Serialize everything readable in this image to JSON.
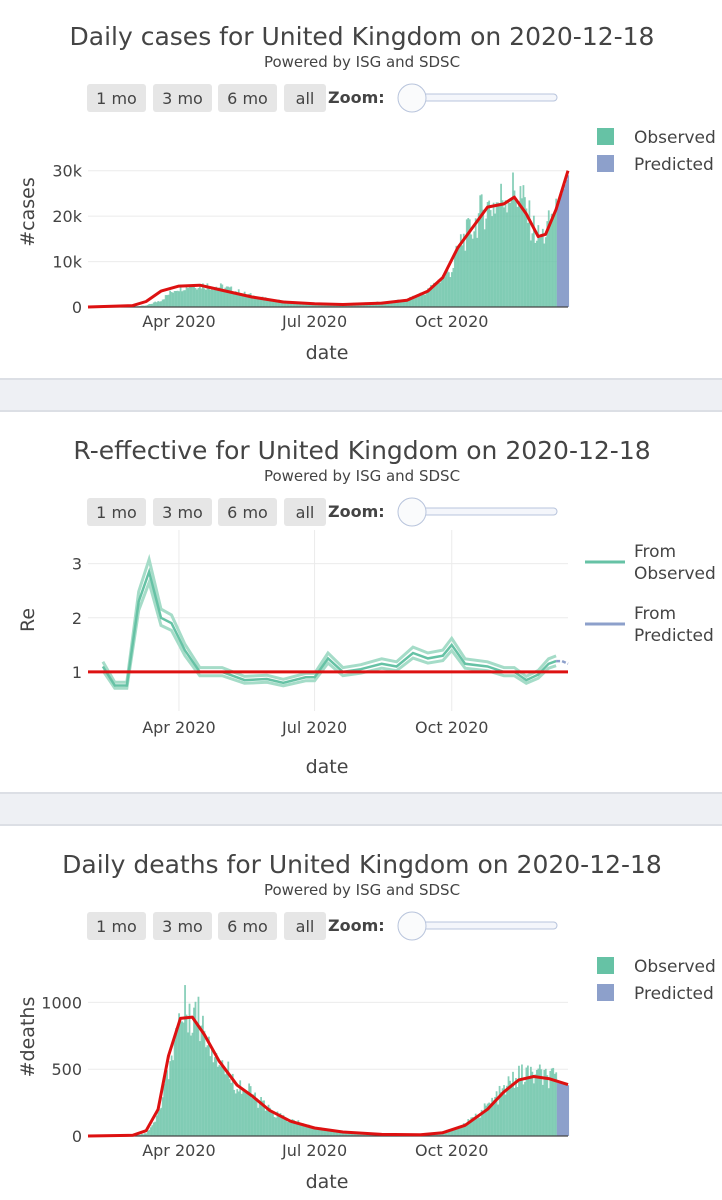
{
  "charts": [
    {
      "title": "Daily cases for United Kingdom on 2020-12-18",
      "subtitle": "Powered by ISG and SDSC",
      "buttons": [
        "1 mo",
        "3 mo",
        "6 mo",
        "all"
      ],
      "zoom_label": "Zoom:",
      "xlabel": "date",
      "ylabel": "#cases",
      "x_ticks": [
        "Apr 2020",
        "Jul 2020",
        "Oct 2020"
      ],
      "y_ticks": [
        "0",
        "10k",
        "20k",
        "30k"
      ],
      "legend": [
        "Observed",
        "Predicted"
      ]
    },
    {
      "title": "R-effective for United Kingdom on 2020-12-18",
      "subtitle": "Powered by ISG and SDSC",
      "buttons": [
        "1 mo",
        "3 mo",
        "6 mo",
        "all"
      ],
      "zoom_label": "Zoom:",
      "xlabel": "date",
      "ylabel": "Re",
      "x_ticks": [
        "Apr 2020",
        "Jul 2020",
        "Oct 2020"
      ],
      "y_ticks": [
        "1",
        "2",
        "3"
      ],
      "legend": [
        [
          "From",
          "Observed"
        ],
        [
          "From",
          "Predicted"
        ]
      ]
    },
    {
      "title": "Daily deaths for United Kingdom on 2020-12-18",
      "subtitle": "Powered by ISG and SDSC",
      "buttons": [
        "1 mo",
        "3 mo",
        "6 mo",
        "all"
      ],
      "zoom_label": "Zoom:",
      "xlabel": "date",
      "ylabel": "#deaths",
      "x_ticks": [
        "Apr 2020",
        "Jul 2020",
        "Oct 2020"
      ],
      "y_ticks": [
        "0",
        "500",
        "1000"
      ],
      "legend": [
        "Observed",
        "Predicted"
      ]
    }
  ],
  "colors": {
    "observed": "#66c2a5",
    "predicted": "#8da0cb",
    "smooth_line": "#dd1111",
    "reference_line": "#dd1111",
    "r_band": "#a5dcc8"
  },
  "chart_data": [
    {
      "type": "bar",
      "x_range": [
        "2020-01-31",
        "2020-12-18"
      ],
      "ylim": [
        0,
        35000
      ],
      "observed_end": "2020-12-10",
      "observed": [
        [
          "2020-01-31",
          0
        ],
        [
          "2020-02-15",
          50
        ],
        [
          "2020-03-01",
          100
        ],
        [
          "2020-03-10",
          300
        ],
        [
          "2020-03-20",
          1500
        ],
        [
          "2020-03-30",
          4000
        ],
        [
          "2020-04-10",
          4800
        ],
        [
          "2020-04-20",
          4600
        ],
        [
          "2020-05-01",
          4200
        ],
        [
          "2020-05-15",
          2800
        ],
        [
          "2020-06-01",
          1500
        ],
        [
          "2020-06-15",
          1100
        ],
        [
          "2020-07-01",
          700
        ],
        [
          "2020-07-15",
          600
        ],
        [
          "2020-08-01",
          800
        ],
        [
          "2020-08-15",
          1000
        ],
        [
          "2020-09-01",
          1500
        ],
        [
          "2020-09-15",
          3500
        ],
        [
          "2020-09-25",
          6500
        ],
        [
          "2020-10-01",
          8000
        ],
        [
          "2020-10-07",
          14000
        ],
        [
          "2020-10-15",
          17000
        ],
        [
          "2020-10-22",
          21000
        ],
        [
          "2020-11-01",
          22500
        ],
        [
          "2020-11-05",
          24000
        ],
        [
          "2020-11-10",
          25000
        ],
        [
          "2020-11-16",
          24000
        ],
        [
          "2020-11-23",
          18000
        ],
        [
          "2020-11-28",
          15000
        ],
        [
          "2020-12-02",
          15500
        ],
        [
          "2020-12-06",
          18000
        ],
        [
          "2020-12-10",
          22000
        ]
      ],
      "predicted": [
        [
          "2020-12-10",
          22000
        ],
        [
          "2020-12-14",
          25000
        ],
        [
          "2020-12-18",
          29000
        ]
      ],
      "smooth": [
        [
          "2020-01-31",
          0
        ],
        [
          "2020-03-01",
          300
        ],
        [
          "2020-03-10",
          1200
        ],
        [
          "2020-03-20",
          3500
        ],
        [
          "2020-04-01",
          4600
        ],
        [
          "2020-04-15",
          4800
        ],
        [
          "2020-05-01",
          3600
        ],
        [
          "2020-05-20",
          2200
        ],
        [
          "2020-06-10",
          1100
        ],
        [
          "2020-07-01",
          700
        ],
        [
          "2020-07-20",
          550
        ],
        [
          "2020-08-15",
          850
        ],
        [
          "2020-09-01",
          1500
        ],
        [
          "2020-09-15",
          3500
        ],
        [
          "2020-09-25",
          6500
        ],
        [
          "2020-10-05",
          13000
        ],
        [
          "2020-10-15",
          17500
        ],
        [
          "2020-10-25",
          22000
        ],
        [
          "2020-11-05",
          22700
        ],
        [
          "2020-11-12",
          24200
        ],
        [
          "2020-11-20",
          20500
        ],
        [
          "2020-11-28",
          15500
        ],
        [
          "2020-12-03",
          16000
        ],
        [
          "2020-12-10",
          21500
        ],
        [
          "2020-12-18",
          30000
        ]
      ]
    },
    {
      "type": "line",
      "x_range": [
        "2020-01-31",
        "2020-12-18"
      ],
      "ylim": [
        0.5,
        3.4
      ],
      "reference_line": 1,
      "observed": [
        [
          "2020-02-10",
          1.1
        ],
        [
          "2020-02-18",
          0.75
        ],
        [
          "2020-02-26",
          0.75
        ],
        [
          "2020-03-05",
          2.3
        ],
        [
          "2020-03-12",
          2.85
        ],
        [
          "2020-03-20",
          2.0
        ],
        [
          "2020-03-27",
          1.9
        ],
        [
          "2020-04-05",
          1.4
        ],
        [
          "2020-04-15",
          1.0
        ],
        [
          "2020-04-30",
          1.0
        ],
        [
          "2020-05-15",
          0.85
        ],
        [
          "2020-05-30",
          0.87
        ],
        [
          "2020-06-10",
          0.8
        ],
        [
          "2020-06-25",
          0.9
        ],
        [
          "2020-07-01",
          0.9
        ],
        [
          "2020-07-10",
          1.25
        ],
        [
          "2020-07-20",
          1.0
        ],
        [
          "2020-08-01",
          1.05
        ],
        [
          "2020-08-15",
          1.15
        ],
        [
          "2020-08-25",
          1.1
        ],
        [
          "2020-09-05",
          1.35
        ],
        [
          "2020-09-15",
          1.25
        ],
        [
          "2020-09-25",
          1.3
        ],
        [
          "2020-10-01",
          1.5
        ],
        [
          "2020-10-10",
          1.15
        ],
        [
          "2020-10-25",
          1.1
        ],
        [
          "2020-11-05",
          1.0
        ],
        [
          "2020-11-12",
          1.0
        ],
        [
          "2020-11-20",
          0.85
        ],
        [
          "2020-11-28",
          0.95
        ],
        [
          "2020-12-05",
          1.15
        ],
        [
          "2020-12-10",
          1.2
        ]
      ],
      "predicted": [
        [
          "2020-12-10",
          1.2
        ],
        [
          "2020-12-14",
          1.2
        ],
        [
          "2020-12-18",
          1.15
        ]
      ]
    },
    {
      "type": "bar",
      "x_range": [
        "2020-01-31",
        "2020-12-18"
      ],
      "ylim": [
        0,
        1250
      ],
      "observed_end": "2020-12-10",
      "observed": [
        [
          "2020-01-31",
          0
        ],
        [
          "2020-03-01",
          0
        ],
        [
          "2020-03-10",
          20
        ],
        [
          "2020-03-18",
          150
        ],
        [
          "2020-03-25",
          500
        ],
        [
          "2020-04-01",
          850
        ],
        [
          "2020-04-08",
          950
        ],
        [
          "2020-04-15",
          850
        ],
        [
          "2020-04-22",
          700
        ],
        [
          "2020-05-01",
          500
        ],
        [
          "2020-05-10",
          380
        ],
        [
          "2020-05-20",
          300
        ],
        [
          "2020-06-01",
          180
        ],
        [
          "2020-06-15",
          110
        ],
        [
          "2020-07-01",
          60
        ],
        [
          "2020-07-15",
          35
        ],
        [
          "2020-08-01",
          15
        ],
        [
          "2020-08-20",
          10
        ],
        [
          "2020-09-10",
          12
        ],
        [
          "2020-09-25",
          30
        ],
        [
          "2020-10-05",
          60
        ],
        [
          "2020-10-15",
          120
        ],
        [
          "2020-10-25",
          220
        ],
        [
          "2020-11-05",
          330
        ],
        [
          "2020-11-12",
          420
        ],
        [
          "2020-11-20",
          450
        ],
        [
          "2020-11-28",
          440
        ],
        [
          "2020-12-05",
          420
        ],
        [
          "2020-12-10",
          400
        ]
      ],
      "predicted": [
        [
          "2020-12-10",
          400
        ],
        [
          "2020-12-14",
          390
        ],
        [
          "2020-12-18",
          380
        ]
      ],
      "smooth": [
        [
          "2020-01-31",
          0
        ],
        [
          "2020-03-01",
          5
        ],
        [
          "2020-03-10",
          40
        ],
        [
          "2020-03-18",
          200
        ],
        [
          "2020-03-25",
          600
        ],
        [
          "2020-04-02",
          880
        ],
        [
          "2020-04-10",
          890
        ],
        [
          "2020-04-18",
          760
        ],
        [
          "2020-04-28",
          560
        ],
        [
          "2020-05-10",
          380
        ],
        [
          "2020-05-20",
          300
        ],
        [
          "2020-06-01",
          190
        ],
        [
          "2020-06-15",
          110
        ],
        [
          "2020-07-01",
          60
        ],
        [
          "2020-07-20",
          30
        ],
        [
          "2020-08-15",
          12
        ],
        [
          "2020-09-10",
          10
        ],
        [
          "2020-09-25",
          25
        ],
        [
          "2020-10-10",
          80
        ],
        [
          "2020-10-25",
          200
        ],
        [
          "2020-11-05",
          330
        ],
        [
          "2020-11-15",
          420
        ],
        [
          "2020-11-25",
          445
        ],
        [
          "2020-12-05",
          430
        ],
        [
          "2020-12-18",
          385
        ]
      ]
    }
  ]
}
